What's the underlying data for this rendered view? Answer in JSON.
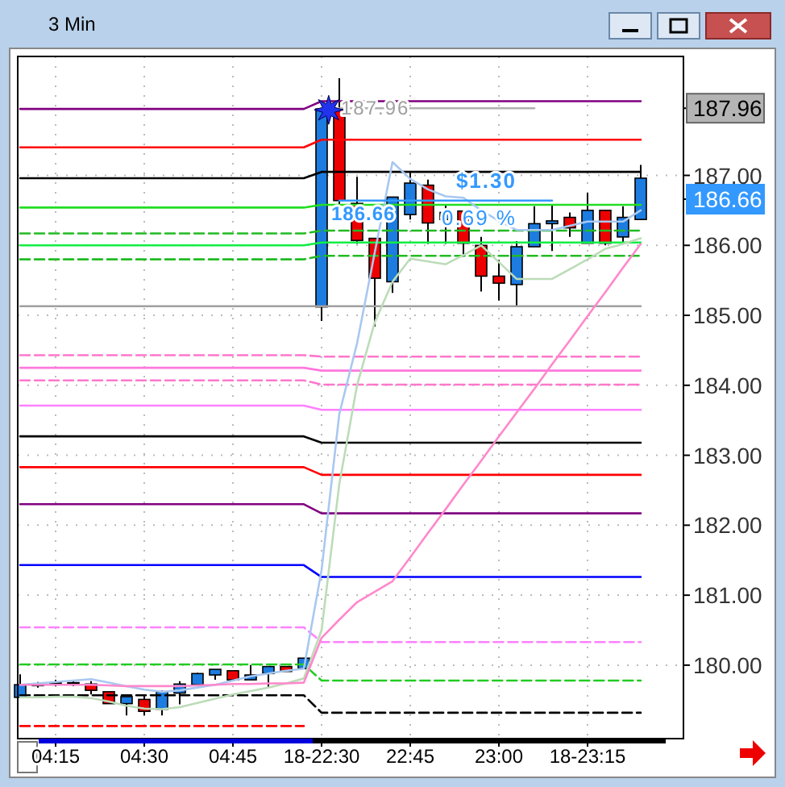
{
  "chart_data": {
    "type": "candlestick",
    "title": "3 Min",
    "categories": [
      null,
      null,
      "04:15",
      null,
      null,
      null,
      null,
      "04:30",
      null,
      null,
      null,
      null,
      "04:45",
      null,
      null,
      null,
      null,
      "18-22:30",
      null,
      null,
      null,
      null,
      "22:45",
      null,
      null,
      null,
      null,
      "23:00",
      null,
      null,
      null,
      null,
      "18-23:15",
      null,
      null,
      null
    ],
    "ohlc": [
      [
        179.54,
        179.87,
        179.54,
        179.72
      ],
      [
        179.71,
        179.76,
        179.68,
        179.73
      ],
      [
        179.75,
        179.79,
        179.7,
        179.75
      ],
      [
        179.75,
        179.79,
        179.7,
        179.75
      ],
      [
        179.73,
        179.77,
        179.58,
        179.64
      ],
      [
        179.62,
        179.62,
        179.45,
        179.45
      ],
      [
        179.45,
        179.55,
        179.28,
        179.55
      ],
      [
        179.51,
        179.56,
        179.28,
        179.34
      ],
      [
        179.37,
        179.64,
        179.28,
        179.62
      ],
      [
        179.6,
        179.77,
        179.44,
        179.73
      ],
      [
        179.72,
        179.89,
        179.72,
        179.88
      ],
      [
        179.86,
        179.94,
        179.79,
        179.94
      ],
      [
        179.92,
        179.92,
        179.79,
        179.79
      ],
      [
        179.79,
        180.0,
        179.79,
        179.86
      ],
      [
        179.88,
        179.98,
        179.69,
        179.98
      ],
      [
        179.98,
        179.98,
        179.91,
        179.91
      ],
      [
        179.95,
        180.1,
        179.95,
        180.1
      ],
      [
        185.12,
        187.96,
        184.92,
        187.95
      ],
      [
        187.95,
        188.39,
        186.58,
        186.64
      ],
      [
        186.6,
        186.98,
        186.02,
        186.07
      ],
      [
        186.1,
        186.1,
        184.84,
        185.53
      ],
      [
        185.48,
        186.69,
        185.32,
        186.69
      ],
      [
        186.44,
        187.06,
        186.37,
        186.89
      ],
      [
        186.86,
        186.94,
        186.02,
        186.32
      ],
      [
        186.37,
        186.58,
        186.02,
        186.47
      ],
      [
        186.49,
        186.49,
        185.84,
        186.03
      ],
      [
        186.0,
        186.12,
        185.34,
        185.56
      ],
      [
        185.56,
        185.79,
        185.21,
        185.46
      ],
      [
        185.44,
        186.06,
        185.12,
        185.98
      ],
      [
        185.98,
        186.56,
        185.98,
        186.31
      ],
      [
        186.31,
        186.58,
        185.92,
        186.35
      ],
      [
        186.4,
        186.47,
        186.12,
        186.25
      ],
      [
        186.03,
        186.75,
        186.03,
        186.5
      ],
      [
        186.5,
        186.5,
        186.0,
        186.03
      ],
      [
        186.12,
        186.56,
        186.04,
        186.4
      ],
      [
        186.37,
        187.15,
        186.37,
        186.96
      ]
    ],
    "colors": [
      "#1c7ce0",
      "#1c7ce0",
      "#000000",
      "#000000",
      "#ee0000",
      "#ee0000",
      "#1c7ce0",
      "#ee0000",
      "#1c7ce0",
      "#1c7ce0",
      "#1c7ce0",
      "#1c7ce0",
      "#ee0000",
      "#1c7ce0",
      "#1c7ce0",
      "#ee0000",
      "#1c7ce0",
      "#1c7ce0",
      "#ee0000",
      "#ee0000",
      "#ee0000",
      "#1c7ce0",
      "#1c7ce0",
      "#ee0000",
      "#1c7ce0",
      "#ee0000",
      "#ee0000",
      "#ee0000",
      "#1c7ce0",
      "#1c7ce0",
      "#1c7ce0",
      "#ee0000",
      "#1c7ce0",
      "#ee0000",
      "#1c7ce0",
      "#1c7ce0"
    ],
    "series": [
      {
        "type": "line",
        "color": "#800080",
        "line_style": "solid",
        "values": [
          187.95,
          187.95,
          187.95,
          187.95,
          187.95,
          187.95,
          187.95,
          187.95,
          187.95,
          187.95,
          187.95,
          187.95,
          187.95,
          187.95,
          187.95,
          187.95,
          187.95,
          188.06,
          188.06,
          188.06,
          188.06,
          188.06,
          188.06,
          188.06,
          188.06,
          188.06,
          188.06,
          188.06,
          188.06,
          188.06,
          188.06,
          188.06,
          188.06,
          188.06,
          188.06,
          188.06
        ]
      },
      {
        "type": "line",
        "color": "#ff0000",
        "line_style": "solid",
        "values": [
          187.4,
          187.4,
          187.4,
          187.4,
          187.4,
          187.4,
          187.4,
          187.4,
          187.4,
          187.4,
          187.4,
          187.4,
          187.4,
          187.4,
          187.4,
          187.4,
          187.4,
          187.51,
          187.51,
          187.51,
          187.51,
          187.51,
          187.51,
          187.51,
          187.51,
          187.51,
          187.51,
          187.51,
          187.51,
          187.51,
          187.51,
          187.51,
          187.51,
          187.51,
          187.51,
          187.51
        ]
      },
      {
        "type": "line",
        "color": "#000000",
        "line_style": "solid",
        "values": [
          186.96,
          186.96,
          186.96,
          186.96,
          186.96,
          186.96,
          186.96,
          186.96,
          186.96,
          186.96,
          186.96,
          186.96,
          186.96,
          186.96,
          186.96,
          186.96,
          186.96,
          187.05,
          187.05,
          187.05,
          187.05,
          187.05,
          187.05,
          187.05,
          187.05,
          187.05,
          187.05,
          187.05,
          187.05,
          187.05,
          187.05,
          187.05,
          187.05,
          187.05,
          187.05,
          187.05
        ]
      },
      {
        "type": "line",
        "color": "#22dd22",
        "line_style": "solid",
        "values": [
          186.54,
          186.54,
          186.54,
          186.54,
          186.54,
          186.54,
          186.54,
          186.54,
          186.54,
          186.54,
          186.54,
          186.54,
          186.54,
          186.54,
          186.54,
          186.54,
          186.54,
          186.58,
          186.58,
          186.58,
          186.58,
          186.58,
          186.58,
          186.58,
          186.58,
          186.58,
          186.58,
          186.58,
          186.58,
          186.58,
          186.58,
          186.58,
          186.58,
          186.58,
          186.58,
          186.58
        ]
      },
      {
        "type": "line",
        "color": "#22bb22",
        "line_style": "dashed",
        "values": [
          186.17,
          186.17,
          186.17,
          186.17,
          186.17,
          186.17,
          186.17,
          186.17,
          186.17,
          186.17,
          186.17,
          186.17,
          186.17,
          186.17,
          186.17,
          186.17,
          186.17,
          186.21,
          186.21,
          186.21,
          186.21,
          186.21,
          186.21,
          186.21,
          186.21,
          186.21,
          186.21,
          186.21,
          186.21,
          186.21,
          186.21,
          186.21,
          186.21,
          186.21,
          186.21,
          186.21
        ]
      },
      {
        "type": "line",
        "color": "#11ee44",
        "line_style": "solid",
        "values": [
          186.0,
          186.0,
          186.0,
          186.0,
          186.0,
          186.0,
          186.0,
          186.0,
          186.0,
          186.0,
          186.0,
          186.0,
          186.0,
          186.0,
          186.0,
          186.0,
          186.0,
          186.04,
          186.04,
          186.04,
          186.04,
          186.04,
          186.04,
          186.04,
          186.04,
          186.04,
          186.04,
          186.04,
          186.04,
          186.04,
          186.04,
          186.04,
          186.04,
          186.04,
          186.04,
          186.04
        ]
      },
      {
        "type": "line",
        "color": "#22bb22",
        "line_style": "dashed",
        "values": [
          185.8,
          185.8,
          185.8,
          185.8,
          185.8,
          185.8,
          185.8,
          185.8,
          185.8,
          185.8,
          185.8,
          185.8,
          185.8,
          185.8,
          185.8,
          185.8,
          185.8,
          185.85,
          185.85,
          185.85,
          185.85,
          185.85,
          185.85,
          185.85,
          185.85,
          185.85,
          185.85,
          185.85,
          185.85,
          185.85,
          185.85,
          185.85,
          185.85,
          185.85,
          185.85,
          185.85
        ]
      },
      {
        "type": "line",
        "color": "#a0a0a0",
        "line_style": "solid",
        "values": [
          185.13,
          185.13,
          185.13,
          185.13,
          185.13,
          185.13,
          185.13,
          185.13,
          185.13,
          185.13,
          185.13,
          185.13,
          185.13,
          185.13,
          185.13,
          185.13,
          185.13,
          185.13,
          185.13,
          185.13,
          185.13,
          185.13,
          185.13,
          185.13,
          185.13,
          185.13,
          185.13,
          185.13,
          185.13,
          185.13,
          185.13,
          185.13,
          185.13,
          185.13,
          185.13,
          185.13
        ]
      },
      {
        "type": "line",
        "color": "#ff77cc",
        "line_style": "dashed",
        "values": [
          184.43,
          184.43,
          184.43,
          184.43,
          184.43,
          184.43,
          184.43,
          184.43,
          184.43,
          184.43,
          184.43,
          184.43,
          184.43,
          184.43,
          184.43,
          184.43,
          184.43,
          184.41,
          184.41,
          184.41,
          184.41,
          184.41,
          184.41,
          184.41,
          184.41,
          184.41,
          184.41,
          184.41,
          184.41,
          184.41,
          184.41,
          184.41,
          184.41,
          184.41,
          184.41,
          184.41
        ]
      },
      {
        "type": "line",
        "color": "#ff77dd",
        "line_style": "solid",
        "values": [
          184.25,
          184.25,
          184.25,
          184.25,
          184.25,
          184.25,
          184.25,
          184.25,
          184.25,
          184.25,
          184.25,
          184.25,
          184.25,
          184.25,
          184.25,
          184.25,
          184.25,
          184.21,
          184.21,
          184.21,
          184.21,
          184.21,
          184.21,
          184.21,
          184.21,
          184.21,
          184.21,
          184.21,
          184.21,
          184.21,
          184.21,
          184.21,
          184.21,
          184.21,
          184.21,
          184.21
        ]
      },
      {
        "type": "line",
        "color": "#ff77cc",
        "line_style": "dashed",
        "values": [
          184.07,
          184.07,
          184.07,
          184.07,
          184.07,
          184.07,
          184.07,
          184.07,
          184.07,
          184.07,
          184.07,
          184.07,
          184.07,
          184.07,
          184.07,
          184.07,
          184.07,
          184.01,
          184.01,
          184.01,
          184.01,
          184.01,
          184.01,
          184.01,
          184.01,
          184.01,
          184.01,
          184.01,
          184.01,
          184.01,
          184.01,
          184.01,
          184.01,
          184.01,
          184.01,
          184.01
        ]
      },
      {
        "type": "line",
        "color": "#ff80ff",
        "line_style": "solid",
        "values": [
          183.71,
          183.71,
          183.71,
          183.71,
          183.71,
          183.71,
          183.71,
          183.71,
          183.71,
          183.71,
          183.71,
          183.71,
          183.71,
          183.71,
          183.71,
          183.71,
          183.71,
          183.65,
          183.65,
          183.65,
          183.65,
          183.65,
          183.65,
          183.65,
          183.65,
          183.65,
          183.65,
          183.65,
          183.65,
          183.65,
          183.65,
          183.65,
          183.65,
          183.65,
          183.65,
          183.65
        ]
      },
      {
        "type": "line",
        "color": "#000000",
        "line_style": "solid",
        "values": [
          183.27,
          183.27,
          183.27,
          183.27,
          183.27,
          183.27,
          183.27,
          183.27,
          183.27,
          183.27,
          183.27,
          183.27,
          183.27,
          183.27,
          183.27,
          183.27,
          183.27,
          183.18,
          183.18,
          183.18,
          183.18,
          183.18,
          183.18,
          183.18,
          183.18,
          183.18,
          183.18,
          183.18,
          183.18,
          183.18,
          183.18,
          183.18,
          183.18,
          183.18,
          183.18,
          183.18
        ]
      },
      {
        "type": "line",
        "color": "#ff0000",
        "line_style": "solid",
        "values": [
          182.83,
          182.83,
          182.83,
          182.83,
          182.83,
          182.83,
          182.83,
          182.83,
          182.83,
          182.83,
          182.83,
          182.83,
          182.83,
          182.83,
          182.83,
          182.83,
          182.83,
          182.72,
          182.72,
          182.72,
          182.72,
          182.72,
          182.72,
          182.72,
          182.72,
          182.72,
          182.72,
          182.72,
          182.72,
          182.72,
          182.72,
          182.72,
          182.72,
          182.72,
          182.72,
          182.72
        ]
      },
      {
        "type": "line",
        "color": "#800080",
        "line_style": "solid",
        "values": [
          182.3,
          182.3,
          182.3,
          182.3,
          182.3,
          182.3,
          182.3,
          182.3,
          182.3,
          182.3,
          182.3,
          182.3,
          182.3,
          182.3,
          182.3,
          182.3,
          182.3,
          182.17,
          182.17,
          182.17,
          182.17,
          182.17,
          182.17,
          182.17,
          182.17,
          182.17,
          182.17,
          182.17,
          182.17,
          182.17,
          182.17,
          182.17,
          182.17,
          182.17,
          182.17,
          182.17
        ]
      },
      {
        "type": "line",
        "color": "#0000ff",
        "line_style": "solid",
        "values": [
          181.43,
          181.43,
          181.43,
          181.43,
          181.43,
          181.43,
          181.43,
          181.43,
          181.43,
          181.43,
          181.43,
          181.43,
          181.43,
          181.43,
          181.43,
          181.43,
          181.43,
          181.26,
          181.26,
          181.26,
          181.26,
          181.26,
          181.26,
          181.26,
          181.26,
          181.26,
          181.26,
          181.26,
          181.26,
          181.26,
          181.26,
          181.26,
          181.26,
          181.26,
          181.26,
          181.26
        ]
      },
      {
        "type": "line",
        "color": "#ff80ff",
        "line_style": "dashed",
        "values": [
          180.54,
          180.54,
          180.54,
          180.54,
          180.54,
          180.54,
          180.54,
          180.54,
          180.54,
          180.54,
          180.54,
          180.54,
          180.54,
          180.54,
          180.54,
          180.54,
          180.54,
          180.33,
          180.33,
          180.33,
          180.33,
          180.33,
          180.33,
          180.33,
          180.33,
          180.33,
          180.33,
          180.33,
          180.33,
          180.33,
          180.33,
          180.33,
          180.33,
          180.33,
          180.33,
          180.33
        ]
      },
      {
        "type": "line",
        "color": "#22cc22",
        "line_style": "dashed",
        "values": [
          180.01,
          180.01,
          180.01,
          180.01,
          180.01,
          180.01,
          180.01,
          180.01,
          180.01,
          180.01,
          180.01,
          180.01,
          180.01,
          180.01,
          180.01,
          180.01,
          180.01,
          179.78,
          179.78,
          179.78,
          179.78,
          179.78,
          179.78,
          179.78,
          179.78,
          179.78,
          179.78,
          179.78,
          179.78,
          179.78,
          179.78,
          179.78,
          179.78,
          179.78,
          179.78,
          179.78
        ]
      },
      {
        "type": "line",
        "color": "#000000",
        "line_style": "dashed",
        "values": [
          179.57,
          179.57,
          179.57,
          179.57,
          179.57,
          179.57,
          179.57,
          179.57,
          179.57,
          179.57,
          179.57,
          179.57,
          179.57,
          179.57,
          179.57,
          179.57,
          179.57,
          179.32,
          179.32,
          179.32,
          179.32,
          179.32,
          179.32,
          179.32,
          179.32,
          179.32,
          179.32,
          179.32,
          179.32,
          179.32,
          179.32,
          179.32,
          179.32,
          179.32,
          179.32,
          179.32
        ]
      },
      {
        "type": "line",
        "color": "#ff0000",
        "line_style": "dashed",
        "values": [
          179.13,
          179.13,
          179.13,
          179.13,
          179.13,
          179.13,
          179.13,
          179.13,
          179.13,
          179.13,
          179.13,
          179.13,
          179.13,
          179.13,
          179.13,
          179.13,
          179.13,
          null,
          null,
          null,
          null,
          null,
          null,
          null,
          null,
          null,
          null,
          null,
          null,
          null,
          null,
          null,
          null,
          null,
          null,
          null
        ]
      },
      {
        "type": "line",
        "color": "#a8c8f0",
        "line_style": "solid",
        "values": [
          179.72,
          179.74,
          179.76,
          179.78,
          179.8,
          179.75,
          179.7,
          179.65,
          179.62,
          179.64,
          179.68,
          179.72,
          179.78,
          179.84,
          179.88,
          179.92,
          179.95,
          181.36,
          183.59,
          184.6,
          185.9,
          187.19,
          186.95,
          186.8,
          186.7,
          186.68,
          186.5,
          186.35,
          186.22,
          186.22,
          186.22,
          186.28,
          186.34,
          186.34,
          186.34,
          186.5
        ]
      },
      {
        "type": "line",
        "color": "#bcdcb8",
        "line_style": "solid",
        "values": [
          179.54,
          179.54,
          179.55,
          179.55,
          179.53,
          179.48,
          179.42,
          179.38,
          179.37,
          179.4,
          179.46,
          179.52,
          179.58,
          179.63,
          179.68,
          179.74,
          179.81,
          180.5,
          182.59,
          184.0,
          184.9,
          185.48,
          185.81,
          185.77,
          185.73,
          185.86,
          186.0,
          185.76,
          185.52,
          185.52,
          185.52,
          185.66,
          185.8,
          185.95,
          186.02,
          186.1
        ]
      },
      {
        "type": "line",
        "color": "#ff88cc",
        "line_style": "solid",
        "values": [
          179.72,
          179.72,
          179.72,
          179.72,
          179.72,
          179.71,
          179.7,
          179.7,
          179.7,
          179.7,
          179.71,
          179.72,
          179.73,
          179.73,
          179.74,
          179.74,
          179.75,
          180.39,
          180.65,
          180.9,
          181.05,
          181.2,
          181.54,
          181.89,
          182.23,
          182.58,
          182.92,
          183.27,
          183.61,
          183.95,
          184.3,
          184.64,
          184.99,
          185.33,
          185.68,
          186.02
        ]
      },
      {
        "type": "line",
        "color": "#b0b0b0",
        "line_style": "solid",
        "values": [
          null,
          null,
          null,
          null,
          null,
          null,
          null,
          null,
          null,
          null,
          null,
          null,
          null,
          null,
          null,
          null,
          null,
          null,
          187.96,
          187.96,
          187.96,
          187.96,
          187.96,
          187.96,
          187.96,
          187.96,
          187.96,
          187.96,
          187.96,
          187.96,
          null,
          null,
          null,
          null,
          null,
          null
        ]
      },
      {
        "type": "line",
        "color": "#3399ff",
        "line_style": "solid",
        "values": [
          null,
          null,
          null,
          null,
          null,
          null,
          null,
          null,
          null,
          null,
          null,
          null,
          null,
          null,
          null,
          null,
          null,
          null,
          186.64,
          186.64,
          186.64,
          186.64,
          186.64,
          186.64,
          186.64,
          186.64,
          186.64,
          186.64,
          186.64,
          186.64,
          186.64,
          null,
          null,
          null,
          null,
          null
        ]
      }
    ],
    "ylim": [
      178.95,
      188.7
    ],
    "yticks": [
      {
        "value": 187.96,
        "label": "187.96"
      },
      {
        "value": 186.66,
        "label": "186.66"
      },
      {
        "value": 180,
        "label": "180.00"
      },
      {
        "value": 181,
        "label": "181.00"
      },
      {
        "value": 182,
        "label": "182.00"
      },
      {
        "value": 183,
        "label": "183.00"
      },
      {
        "value": 184,
        "label": "184.00"
      },
      {
        "value": 185,
        "label": "185.00"
      },
      {
        "value": 186,
        "label": "186.00"
      },
      {
        "value": 187,
        "label": "187.00"
      }
    ],
    "annotations": [
      {
        "text": "187.96",
        "x": "18-22:30",
        "y": 187.96
      },
      {
        "text": "$1.30",
        "x": "23:00",
        "y": 186.64
      },
      {
        "text": "0.69 %",
        "x": "23:00",
        "y": 186.64
      },
      {
        "text": "186.66",
        "x": "18-22:30",
        "y": 186.45
      }
    ],
    "grid": true
  }
}
